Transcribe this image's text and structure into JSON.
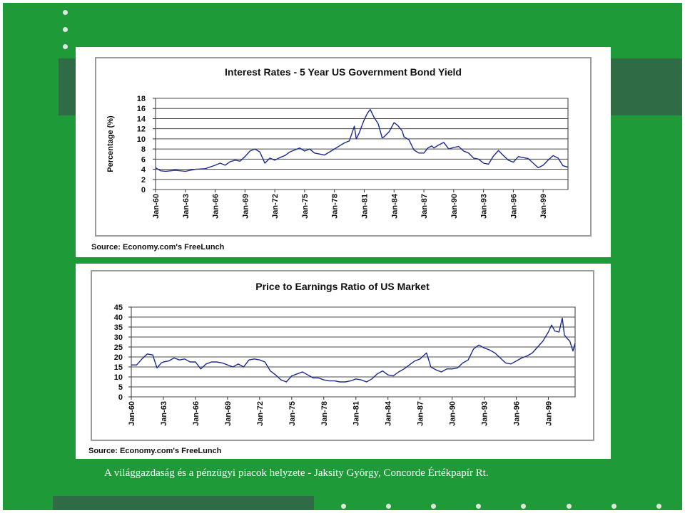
{
  "slide": {
    "footer": "A világgazdaság és a pénzügyi piacok helyzete - Jaksity György, Concorde Értékpapír Rt."
  },
  "colors": {
    "background": "#1f9a38",
    "band": "#2f6b45",
    "line": "#1b2a8f"
  },
  "chart_data": [
    {
      "type": "line",
      "title": "Interest Rates - 5 Year US Government Bond Yield",
      "xlabel": "",
      "ylabel": "Percentage (%)",
      "ylim": [
        0,
        18
      ],
      "yticks": [
        0,
        2,
        4,
        6,
        8,
        10,
        12,
        14,
        16,
        18
      ],
      "xticks": [
        "Jan-60",
        "Jan-63",
        "Jan-66",
        "Jan-69",
        "Jan-72",
        "Jan-75",
        "Jan-78",
        "Jan-81",
        "Jan-84",
        "Jan-87",
        "Jan-90",
        "Jan-93",
        "Jan-96",
        "Jan-99"
      ],
      "xlim": [
        1960,
        2001.5
      ],
      "grid": true,
      "source": "Source: Economy.com's FreeLunch",
      "series": [
        {
          "x": [
            1960,
            1960.5,
            1961,
            1962,
            1963,
            1964,
            1965,
            1966,
            1966.5,
            1967,
            1967.5,
            1968,
            1968.5,
            1969,
            1969.5,
            1970,
            1970.5,
            1971,
            1971.5,
            1972,
            1972.5,
            1973,
            1973.5,
            1974,
            1974.5,
            1975,
            1975.5,
            1976,
            1976.5,
            1977,
            1977.5,
            1978,
            1978.5,
            1979,
            1979.5,
            1980,
            1980.2,
            1980.5,
            1980.8,
            1981,
            1981.3,
            1981.6,
            1981.9,
            1982,
            1982.4,
            1982.8,
            1983,
            1983.5,
            1984,
            1984.4,
            1984.8,
            1985,
            1985.5,
            1986,
            1986.5,
            1987,
            1987.4,
            1987.8,
            1988,
            1988.5,
            1989,
            1989.5,
            1990,
            1990.5,
            1991,
            1991.5,
            1992,
            1992.5,
            1993,
            1993.5,
            1994,
            1994.5,
            1995,
            1995.5,
            1996,
            1996.5,
            1997,
            1997.5,
            1998,
            1998.5,
            1999,
            1999.5,
            2000,
            2000.5,
            2001,
            2001.5
          ],
          "y": [
            4.3,
            3.7,
            3.6,
            3.8,
            3.6,
            4.0,
            4.1,
            4.8,
            5.2,
            4.8,
            5.5,
            5.8,
            5.6,
            6.5,
            7.6,
            8.0,
            7.4,
            5.2,
            6.2,
            5.8,
            6.3,
            6.7,
            7.4,
            7.8,
            8.2,
            7.6,
            8.0,
            7.2,
            7.0,
            6.8,
            7.4,
            8.0,
            8.6,
            9.2,
            9.6,
            12.5,
            10.0,
            11.2,
            12.8,
            13.8,
            15.0,
            15.8,
            14.6,
            14.2,
            13.0,
            10.2,
            10.4,
            11.4,
            13.2,
            12.6,
            11.6,
            10.4,
            9.8,
            7.8,
            7.2,
            7.2,
            8.2,
            8.6,
            8.2,
            8.8,
            9.3,
            8.0,
            8.3,
            8.5,
            7.6,
            7.2,
            6.2,
            6.0,
            5.2,
            5.0,
            6.6,
            7.7,
            6.7,
            5.8,
            5.4,
            6.5,
            6.3,
            6.1,
            5.2,
            4.3,
            4.8,
            5.8,
            6.7,
            6.2,
            4.7,
            4.4
          ]
        }
      ]
    },
    {
      "type": "line",
      "title": "Price to Earnings Ratio of US Market",
      "xlabel": "",
      "ylabel": "",
      "ylim": [
        0,
        45
      ],
      "yticks": [
        0,
        5,
        10,
        15,
        20,
        25,
        30,
        35,
        40,
        45
      ],
      "xticks": [
        "Jan-60",
        "Jan-63",
        "Jan-66",
        "Jan-69",
        "Jan-72",
        "Jan-75",
        "Jan-78",
        "Jan-81",
        "Jan-84",
        "Jan-87",
        "Jan-90",
        "Jan-93",
        "Jan-96",
        "Jan-99"
      ],
      "xlim": [
        1960,
        2001.5
      ],
      "grid": true,
      "source": "Source: Economy.com's FreeLunch",
      "series": [
        {
          "x": [
            1960,
            1960.5,
            1961,
            1961.5,
            1962,
            1962.4,
            1962.8,
            1963,
            1963.5,
            1964,
            1964.5,
            1965,
            1965.5,
            1966,
            1966.5,
            1967,
            1967.5,
            1968,
            1968.5,
            1969,
            1969.5,
            1970,
            1970.5,
            1971,
            1971.5,
            1972,
            1972.5,
            1973,
            1973.5,
            1974,
            1974.5,
            1975,
            1975.5,
            1976,
            1976.5,
            1977,
            1977.5,
            1978,
            1978.5,
            1979,
            1979.5,
            1980,
            1980.5,
            1981,
            1981.5,
            1982,
            1982.5,
            1983,
            1983.5,
            1984,
            1984.5,
            1985,
            1985.5,
            1986,
            1986.5,
            1987,
            1987.6,
            1987.9,
            1988,
            1988.5,
            1989,
            1989.5,
            1990,
            1990.5,
            1991,
            1991.5,
            1992,
            1992.5,
            1993,
            1993.5,
            1994,
            1994.5,
            1995,
            1995.5,
            1996,
            1996.5,
            1997,
            1997.5,
            1998,
            1998.5,
            1999,
            1999.3,
            1999.6,
            2000,
            2000.3,
            2000.5,
            2000.8,
            2001,
            2001.3,
            2001.5
          ],
          "y": [
            16,
            16,
            19,
            21.5,
            21,
            14.5,
            17,
            17.5,
            18,
            19.5,
            18.5,
            19,
            17.5,
            17.5,
            14,
            16.5,
            17.5,
            17.5,
            17,
            16,
            15,
            16.5,
            15,
            18.5,
            19,
            18.5,
            17.5,
            13,
            11,
            8.5,
            7.5,
            10.5,
            11.5,
            12.5,
            11,
            9.5,
            9.5,
            8.5,
            8,
            8,
            7.5,
            7.5,
            8,
            9,
            8.5,
            7.5,
            9,
            11.5,
            13,
            11,
            10.5,
            12.5,
            14,
            16,
            18,
            19,
            22,
            17,
            15,
            13.5,
            12.5,
            14,
            14,
            14.5,
            17,
            18.5,
            24,
            26,
            24.5,
            23.5,
            22,
            19.5,
            17,
            16.5,
            18,
            19.5,
            20.5,
            22,
            25,
            28,
            32.5,
            36,
            33,
            32.5,
            39.5,
            31,
            29,
            28,
            23,
            27
          ]
        }
      ]
    }
  ]
}
